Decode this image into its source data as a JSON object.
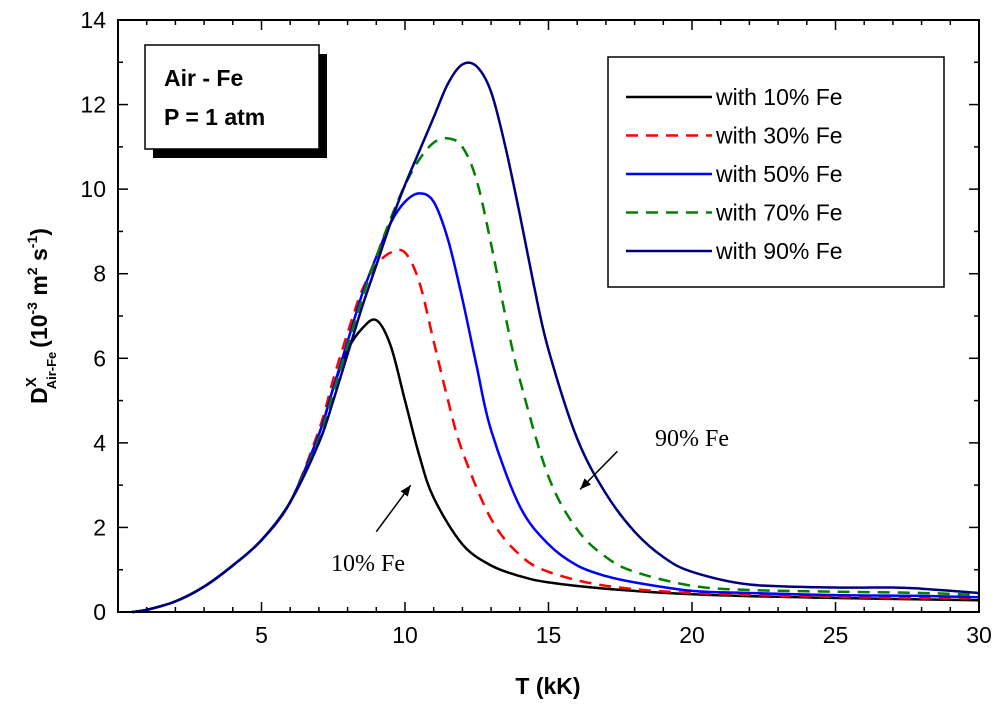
{
  "chart_data": {
    "type": "line",
    "xlabel": "T (kK)",
    "ylabel": {
      "main": "D",
      "superscript": "X",
      "subscript": "Air-Fe",
      "unit_open": "(10",
      "unit_exp1": "-3",
      "unit_m": " m",
      "unit_exp2": "2",
      "unit_s": " s",
      "unit_exp3": "-1",
      "unit_close": ")"
    },
    "xlim": [
      0,
      30
    ],
    "ylim": [
      0,
      14
    ],
    "x_ticks": [
      5,
      10,
      15,
      20,
      25,
      30
    ],
    "x_tick_labels": [
      "5",
      "10",
      "15",
      "20",
      "25",
      "30"
    ],
    "y_ticks": [
      0,
      2,
      4,
      6,
      8,
      10,
      12,
      14
    ],
    "y_tick_labels": [
      "0",
      "2",
      "4",
      "6",
      "8",
      "10",
      "12",
      "14"
    ],
    "info_box": [
      "Air - Fe",
      "P = 1 atm"
    ],
    "legend_position": "top-right",
    "annotations": [
      {
        "text": "10% Fe",
        "arrow_from": [
          9.0,
          1.9
        ],
        "arrow_to": [
          10.2,
          3.0
        ]
      },
      {
        "text": "90% Fe",
        "arrow_from": [
          17.4,
          3.8
        ],
        "arrow_to": [
          16.1,
          2.9
        ]
      }
    ],
    "series": [
      {
        "name": "with 10% Fe",
        "color": "#000000",
        "dash": "solid",
        "x": [
          0.5,
          1,
          2,
          3,
          4,
          5,
          6,
          7,
          7.5,
          8,
          8.5,
          9,
          9.5,
          10,
          10.5,
          11,
          12,
          13,
          14,
          15,
          17,
          20,
          25,
          30
        ],
        "y": [
          0,
          0.05,
          0.25,
          0.6,
          1.1,
          1.7,
          2.6,
          4.2,
          5.3,
          6.2,
          6.7,
          6.9,
          6.3,
          5.0,
          3.7,
          2.7,
          1.6,
          1.1,
          0.85,
          0.7,
          0.55,
          0.42,
          0.33,
          0.28
        ]
      },
      {
        "name": "with 30% Fe",
        "color": "#ff0000",
        "dash": "dashed",
        "x": [
          0.5,
          1,
          2,
          3,
          4,
          5,
          6,
          7,
          7.5,
          8,
          8.5,
          9,
          9.5,
          10,
          10.5,
          11,
          11.5,
          12,
          13,
          14,
          15,
          17,
          20,
          25,
          30
        ],
        "y": [
          0,
          0.05,
          0.25,
          0.6,
          1.1,
          1.7,
          2.6,
          4.3,
          5.5,
          6.6,
          7.6,
          8.2,
          8.5,
          8.5,
          7.8,
          6.4,
          5.0,
          3.8,
          2.2,
          1.35,
          0.95,
          0.62,
          0.45,
          0.36,
          0.32
        ]
      },
      {
        "name": "with 50% Fe",
        "color": "#0000ff",
        "dash": "solid",
        "x": [
          0.5,
          1,
          2,
          3,
          4,
          5,
          6,
          7,
          7.5,
          8,
          8.5,
          9,
          9.5,
          10,
          10.5,
          11,
          11.5,
          12,
          12.5,
          13,
          14,
          15,
          16,
          17,
          18,
          20,
          22,
          25,
          28,
          30
        ],
        "y": [
          0,
          0.05,
          0.25,
          0.6,
          1.1,
          1.7,
          2.6,
          4.2,
          5.3,
          6.4,
          7.5,
          8.4,
          9.2,
          9.7,
          9.9,
          9.7,
          8.8,
          7.4,
          5.8,
          4.3,
          2.5,
          1.6,
          1.1,
          0.85,
          0.7,
          0.5,
          0.45,
          0.4,
          0.38,
          0.35
        ]
      },
      {
        "name": "with 70% Fe",
        "color": "#008000",
        "dash": "dashed",
        "x": [
          0.5,
          1,
          2,
          3,
          4,
          5,
          6,
          7,
          7.5,
          8,
          8.5,
          9,
          9.5,
          10,
          10.5,
          11,
          11.5,
          12,
          12.5,
          13,
          13.5,
          14,
          15,
          16,
          17,
          18,
          20,
          22,
          25,
          28,
          30
        ],
        "y": [
          0,
          0.05,
          0.25,
          0.6,
          1.1,
          1.7,
          2.6,
          4.1,
          5.2,
          6.3,
          7.4,
          8.4,
          9.3,
          10.1,
          10.7,
          11.1,
          11.2,
          11.0,
          10.2,
          8.7,
          7.0,
          5.5,
          3.2,
          1.95,
          1.3,
          0.95,
          0.62,
          0.52,
          0.48,
          0.45,
          0.4
        ]
      },
      {
        "name": "with 90% Fe",
        "color": "#00007f",
        "dash": "solid",
        "x": [
          0.5,
          1,
          2,
          3,
          4,
          5,
          6,
          7,
          7.5,
          8,
          8.5,
          9,
          9.5,
          10,
          10.5,
          11,
          11.5,
          12,
          12.5,
          13,
          13.5,
          14,
          14.5,
          15,
          16,
          17,
          18,
          19,
          20,
          22,
          25,
          27,
          28,
          30
        ],
        "y": [
          0,
          0.05,
          0.25,
          0.6,
          1.1,
          1.7,
          2.6,
          4.0,
          5.0,
          6.1,
          7.2,
          8.2,
          9.2,
          10.1,
          10.9,
          11.7,
          12.5,
          12.95,
          12.9,
          12.3,
          11.0,
          9.4,
          7.7,
          6.2,
          4.1,
          2.8,
          1.9,
          1.3,
          0.95,
          0.65,
          0.58,
          0.58,
          0.55,
          0.45
        ]
      }
    ]
  }
}
